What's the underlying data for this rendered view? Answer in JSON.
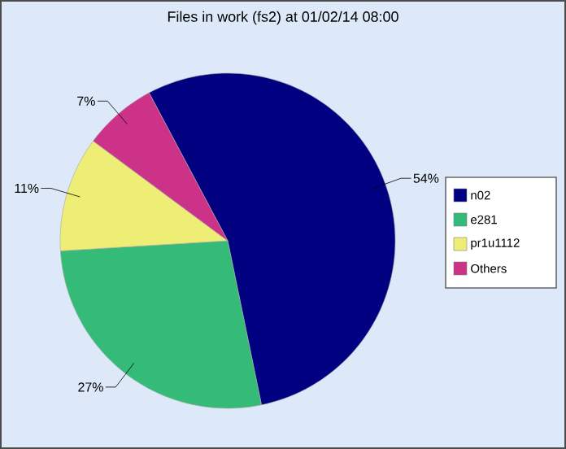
{
  "chart_data": {
    "type": "pie",
    "title": "Files in work (fs2) at 01/02/14 08:00",
    "categories": [
      "n02",
      "e281",
      "pr1u1112",
      "Others"
    ],
    "values": [
      54,
      27,
      11,
      7
    ],
    "value_labels": [
      "54%",
      "27%",
      "11%",
      "7%"
    ],
    "colors": [
      "#000080",
      "#33bb77",
      "#eeee77",
      "#cc3388"
    ],
    "legend": "right"
  }
}
